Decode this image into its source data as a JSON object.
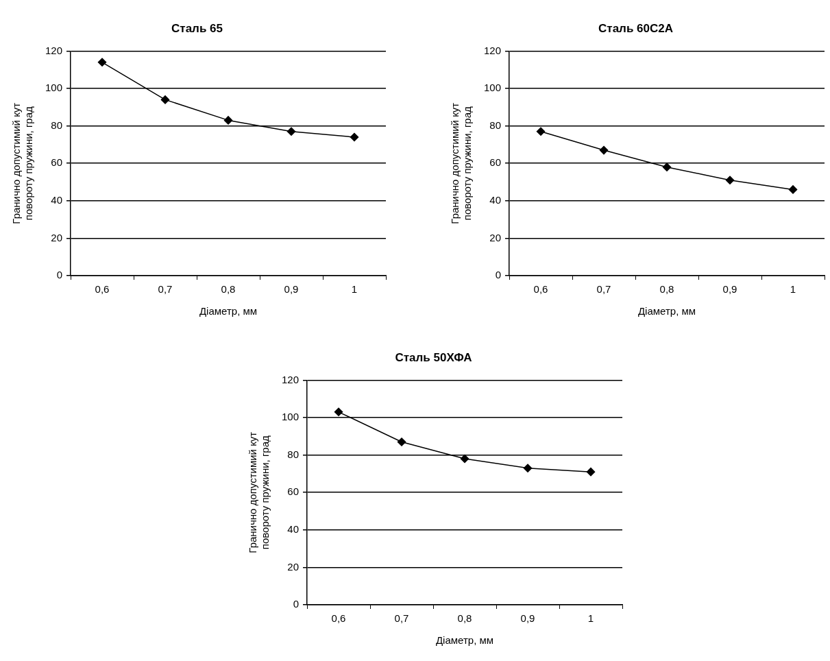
{
  "chart_data": [
    {
      "type": "line",
      "title": "Сталь 65",
      "xlabel": "Діаметр, мм",
      "ylabel": "Гранично допустимий кут повороту пружини, град",
      "categories": [
        "0,6",
        "0,7",
        "0,8",
        "0,9",
        "1"
      ],
      "values": [
        114,
        94,
        83,
        77,
        74
      ],
      "color": "#000000",
      "ylim": [
        0,
        120
      ],
      "yticks": [
        0,
        20,
        40,
        60,
        80,
        100,
        120
      ],
      "grid": "y",
      "marker": "diamond"
    },
    {
      "type": "line",
      "title": "Сталь 60С2А",
      "xlabel": "Діаметр, мм",
      "ylabel": "Гранично допустимий кут повороту пружини, град",
      "categories": [
        "0,6",
        "0,7",
        "0,8",
        "0,9",
        "1"
      ],
      "values": [
        77,
        67,
        58,
        51,
        46
      ],
      "color": "#000000",
      "ylim": [
        0,
        120
      ],
      "yticks": [
        0,
        20,
        40,
        60,
        80,
        100,
        120
      ],
      "grid": "y",
      "marker": "diamond"
    },
    {
      "type": "line",
      "title": "Сталь 50ХФА",
      "xlabel": "Діаметр, мм",
      "ylabel": "Гранично допустимий кут повороту пружини, град",
      "categories": [
        "0,6",
        "0,7",
        "0,8",
        "0,9",
        "1"
      ],
      "values": [
        103,
        87,
        78,
        73,
        71
      ],
      "color": "#000000",
      "ylim": [
        0,
        120
      ],
      "yticks": [
        0,
        20,
        40,
        60,
        80,
        100,
        120
      ],
      "grid": "y",
      "marker": "diamond"
    }
  ]
}
